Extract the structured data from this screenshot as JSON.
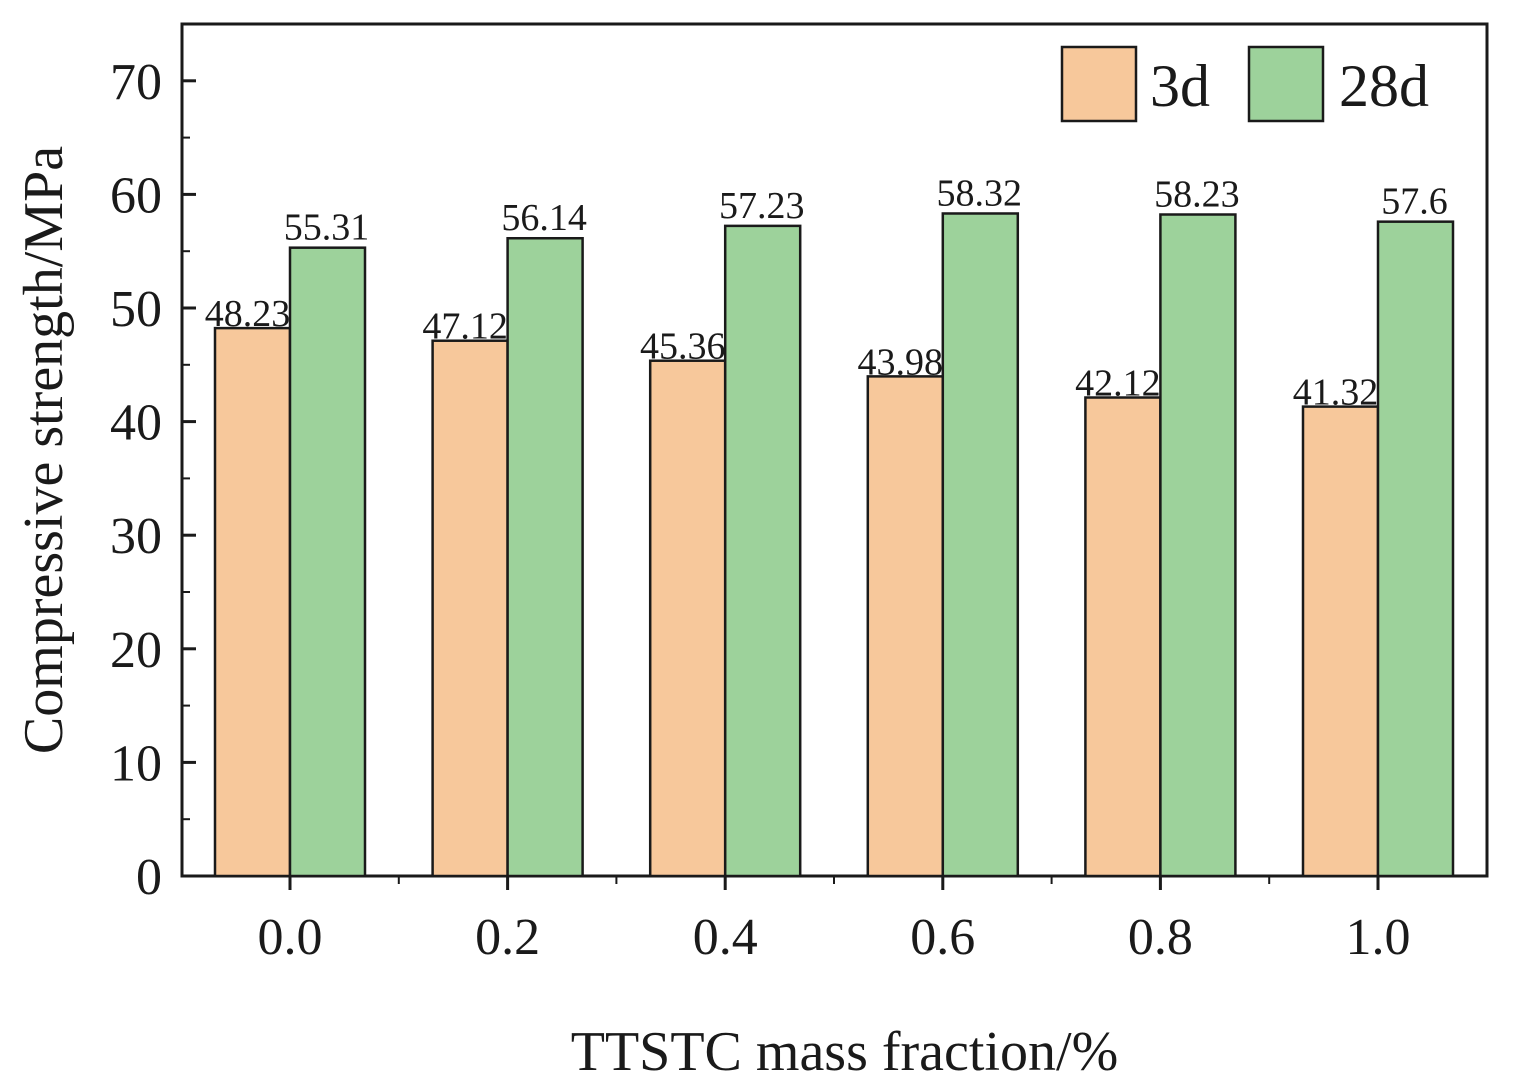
{
  "chart_data": {
    "type": "bar",
    "xlabel": "TTSTC mass fraction/%",
    "ylabel": "Compressive strength/MPa",
    "categories": [
      "0.0",
      "0.2",
      "0.4",
      "0.6",
      "0.8",
      "1.0"
    ],
    "ylim": [
      0,
      75
    ],
    "yticks": [
      "0",
      "10",
      "20",
      "30",
      "40",
      "50",
      "60",
      "70"
    ],
    "series": [
      {
        "name": "3d",
        "color": "#f7c89b",
        "values": [
          48.23,
          47.12,
          45.36,
          43.98,
          42.12,
          41.32
        ],
        "labels": [
          "48.23",
          "47.12",
          "45.36",
          "43.98",
          "42.12",
          "41.32"
        ]
      },
      {
        "name": "28d",
        "color": "#9dd29b",
        "values": [
          55.31,
          56.14,
          57.23,
          58.32,
          58.23,
          57.6
        ],
        "labels": [
          "55.31",
          "56.14",
          "57.23",
          "58.32",
          "58.23",
          "57.6"
        ]
      }
    ],
    "legend_position": "top-right",
    "grid": false
  }
}
